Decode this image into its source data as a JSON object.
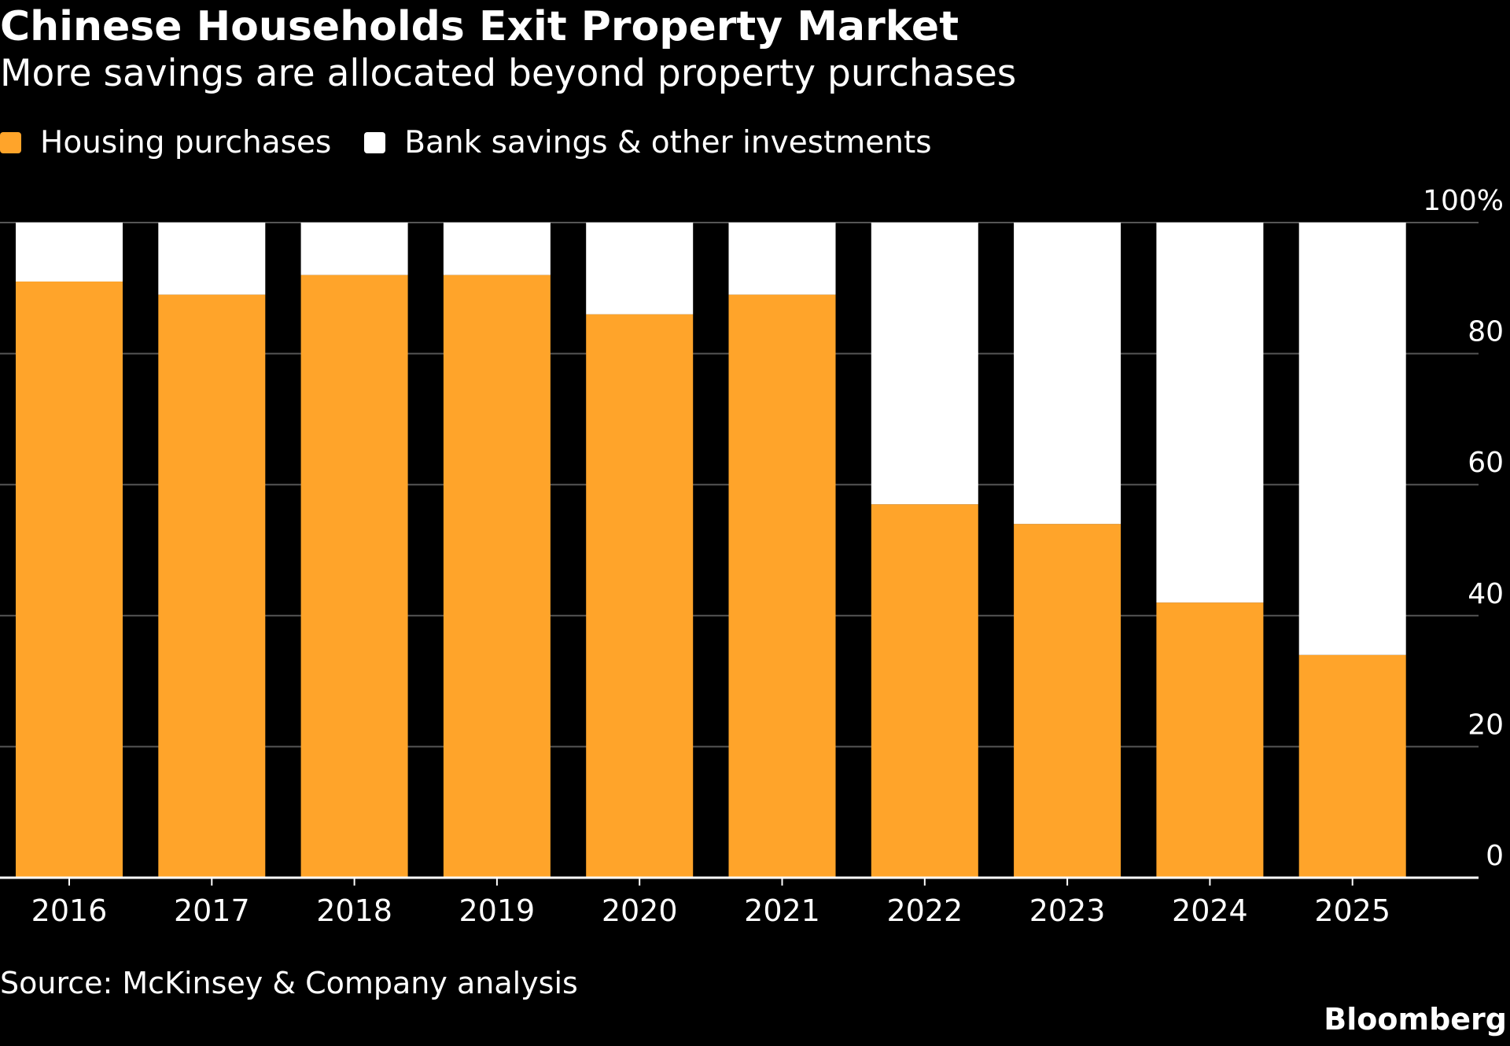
{
  "header": {
    "title": "Chinese Households Exit Property Market",
    "subtitle": "More savings are allocated beyond property purchases"
  },
  "legend": {
    "items": [
      {
        "label": "Housing purchases",
        "color": "#ffa42a"
      },
      {
        "label": "Bank savings & other investments",
        "color": "#ffffff"
      }
    ]
  },
  "footer": {
    "source": "Source: McKinsey & Company analysis",
    "brand": "Bloomberg"
  },
  "chart_data": {
    "type": "bar",
    "stacked": true,
    "percent": true,
    "title": "Chinese Households Exit Property Market",
    "subtitle": "More savings are allocated beyond property purchases",
    "categories": [
      "2016",
      "2017",
      "2018",
      "2019",
      "2020",
      "2021",
      "2022",
      "2023",
      "2024",
      "2025"
    ],
    "series": [
      {
        "name": "Housing purchases",
        "color": "#ffa42a",
        "values": [
          91,
          89,
          92,
          92,
          86,
          89,
          57,
          54,
          42,
          34
        ]
      },
      {
        "name": "Bank savings & other investments",
        "color": "#ffffff",
        "values": [
          9,
          11,
          8,
          8,
          14,
          11,
          43,
          46,
          58,
          66
        ]
      }
    ],
    "ylim": [
      0,
      100
    ],
    "yticks": [
      0,
      20,
      40,
      60,
      80,
      100
    ],
    "ytick_labels": [
      "0",
      "20",
      "40",
      "60",
      "80",
      "100%"
    ],
    "y_axis_side": "right",
    "grid": true,
    "legend_position": "top-left",
    "colors": {
      "background": "#000000",
      "grid": "#555555",
      "axis": "#ffffff"
    }
  }
}
